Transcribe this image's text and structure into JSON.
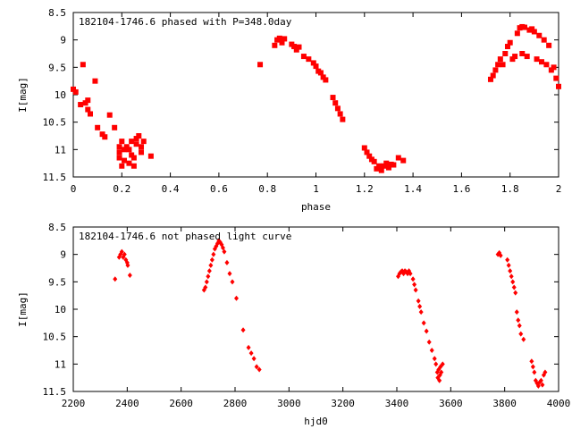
{
  "chart_data": [
    {
      "type": "scatter",
      "title": "182104-1746.6 phased with P=348.0day",
      "xlabel": "phase",
      "ylabel": "I[mag]",
      "xlim": [
        0,
        2
      ],
      "ylim": [
        8.5,
        11.5
      ],
      "y_inverted": true,
      "x_ticks": [
        "0",
        "0.2",
        "0.4",
        "0.6",
        "0.8",
        "1",
        "1.2",
        "1.4",
        "1.6",
        "1.8",
        "2"
      ],
      "y_ticks": [
        "8.5",
        "9",
        "9.5",
        "10",
        "10.5",
        "11",
        "11.5"
      ],
      "color": "#ff0000",
      "marker": "square",
      "grid": false,
      "points": [
        [
          0.0,
          9.9
        ],
        [
          0.01,
          9.95
        ],
        [
          0.03,
          10.18
        ],
        [
          0.04,
          9.45
        ],
        [
          0.05,
          10.15
        ],
        [
          0.06,
          10.27
        ],
        [
          0.06,
          10.1
        ],
        [
          0.07,
          10.35
        ],
        [
          0.09,
          9.75
        ],
        [
          0.1,
          10.6
        ],
        [
          0.12,
          10.72
        ],
        [
          0.13,
          10.77
        ],
        [
          0.15,
          10.37
        ],
        [
          0.17,
          10.6
        ],
        [
          0.19,
          10.95
        ],
        [
          0.19,
          11.05
        ],
        [
          0.19,
          11.15
        ],
        [
          0.2,
          11.3
        ],
        [
          0.2,
          10.85
        ],
        [
          0.21,
          11.2
        ],
        [
          0.21,
          11.0
        ],
        [
          0.22,
          10.95
        ],
        [
          0.23,
          11.25
        ],
        [
          0.23,
          11.0
        ],
        [
          0.24,
          11.1
        ],
        [
          0.24,
          10.85
        ],
        [
          0.25,
          11.3
        ],
        [
          0.25,
          11.15
        ],
        [
          0.26,
          10.8
        ],
        [
          0.26,
          10.9
        ],
        [
          0.27,
          10.75
        ],
        [
          0.28,
          10.95
        ],
        [
          0.28,
          11.05
        ],
        [
          0.29,
          10.85
        ],
        [
          0.32,
          11.12
        ],
        [
          0.77,
          9.45
        ],
        [
          0.83,
          9.1
        ],
        [
          0.84,
          9.0
        ],
        [
          0.85,
          8.97
        ],
        [
          0.86,
          9.05
        ],
        [
          0.87,
          8.98
        ],
        [
          0.9,
          9.08
        ],
        [
          0.91,
          9.12
        ],
        [
          0.92,
          9.18
        ],
        [
          0.93,
          9.13
        ],
        [
          0.95,
          9.3
        ],
        [
          0.97,
          9.35
        ],
        [
          0.99,
          9.42
        ],
        [
          1.0,
          9.48
        ],
        [
          1.01,
          9.57
        ],
        [
          1.02,
          9.6
        ],
        [
          1.03,
          9.68
        ],
        [
          1.04,
          9.73
        ],
        [
          1.07,
          10.05
        ],
        [
          1.08,
          10.15
        ],
        [
          1.09,
          10.25
        ],
        [
          1.1,
          10.35
        ],
        [
          1.11,
          10.45
        ],
        [
          1.2,
          10.97
        ],
        [
          1.21,
          11.05
        ],
        [
          1.22,
          11.12
        ],
        [
          1.23,
          11.18
        ],
        [
          1.24,
          11.22
        ],
        [
          1.25,
          11.35
        ],
        [
          1.26,
          11.3
        ],
        [
          1.27,
          11.38
        ],
        [
          1.28,
          11.3
        ],
        [
          1.29,
          11.25
        ],
        [
          1.3,
          11.33
        ],
        [
          1.31,
          11.27
        ],
        [
          1.32,
          11.28
        ],
        [
          1.34,
          11.15
        ],
        [
          1.36,
          11.2
        ],
        [
          1.72,
          9.72
        ],
        [
          1.73,
          9.65
        ],
        [
          1.74,
          9.55
        ],
        [
          1.75,
          9.45
        ],
        [
          1.76,
          9.35
        ],
        [
          1.77,
          9.45
        ],
        [
          1.78,
          9.25
        ],
        [
          1.79,
          9.12
        ],
        [
          1.8,
          9.05
        ],
        [
          1.81,
          9.35
        ],
        [
          1.82,
          9.3
        ],
        [
          1.83,
          8.88
        ],
        [
          1.84,
          8.78
        ],
        [
          1.85,
          8.76
        ],
        [
          1.85,
          9.25
        ],
        [
          1.86,
          8.77
        ],
        [
          1.87,
          9.3
        ],
        [
          1.88,
          8.82
        ],
        [
          1.89,
          8.8
        ],
        [
          1.9,
          8.85
        ],
        [
          1.91,
          9.35
        ],
        [
          1.92,
          8.92
        ],
        [
          1.93,
          9.4
        ],
        [
          1.94,
          9.0
        ],
        [
          1.95,
          9.45
        ],
        [
          1.96,
          9.1
        ],
        [
          1.97,
          9.55
        ],
        [
          1.98,
          9.5
        ],
        [
          1.99,
          9.7
        ],
        [
          2.0,
          9.85
        ]
      ]
    },
    {
      "type": "scatter",
      "title": "182104-1746.6 not phased light curve",
      "xlabel": "hjd0",
      "ylabel": "I[mag]",
      "xlim": [
        2200,
        4000
      ],
      "ylim": [
        8.5,
        11.5
      ],
      "y_inverted": true,
      "x_ticks": [
        "2200",
        "2400",
        "2600",
        "2800",
        "3000",
        "3200",
        "3400",
        "3600",
        "3800",
        "4000"
      ],
      "y_ticks": [
        "8.5",
        "9",
        "9.5",
        "10",
        "10.5",
        "11",
        "11.5"
      ],
      "color": "#ff0000",
      "marker": "diamond",
      "grid": false,
      "points": [
        [
          2355,
          9.45
        ],
        [
          2370,
          9.05
        ],
        [
          2375,
          9.0
        ],
        [
          2380,
          8.95
        ],
        [
          2385,
          9.05
        ],
        [
          2390,
          9.0
        ],
        [
          2395,
          9.1
        ],
        [
          2400,
          9.15
        ],
        [
          2402,
          9.2
        ],
        [
          2410,
          9.38
        ],
        [
          2685,
          9.65
        ],
        [
          2690,
          9.6
        ],
        [
          2695,
          9.5
        ],
        [
          2700,
          9.4
        ],
        [
          2705,
          9.3
        ],
        [
          2710,
          9.2
        ],
        [
          2715,
          9.1
        ],
        [
          2720,
          9.0
        ],
        [
          2725,
          8.9
        ],
        [
          2730,
          8.85
        ],
        [
          2735,
          8.8
        ],
        [
          2740,
          8.75
        ],
        [
          2745,
          8.78
        ],
        [
          2750,
          8.82
        ],
        [
          2755,
          8.88
        ],
        [
          2760,
          8.95
        ],
        [
          2770,
          9.15
        ],
        [
          2780,
          9.35
        ],
        [
          2790,
          9.5
        ],
        [
          2805,
          9.8
        ],
        [
          2830,
          10.38
        ],
        [
          2850,
          10.7
        ],
        [
          2860,
          10.8
        ],
        [
          2870,
          10.9
        ],
        [
          2880,
          11.05
        ],
        [
          2890,
          11.1
        ],
        [
          3405,
          9.4
        ],
        [
          3410,
          9.35
        ],
        [
          3415,
          9.32
        ],
        [
          3420,
          9.3
        ],
        [
          3425,
          9.35
        ],
        [
          3430,
          9.3
        ],
        [
          3435,
          9.32
        ],
        [
          3440,
          9.35
        ],
        [
          3445,
          9.3
        ],
        [
          3450,
          9.35
        ],
        [
          3460,
          9.45
        ],
        [
          3465,
          9.55
        ],
        [
          3470,
          9.65
        ],
        [
          3480,
          9.85
        ],
        [
          3485,
          9.95
        ],
        [
          3490,
          10.05
        ],
        [
          3500,
          10.25
        ],
        [
          3510,
          10.4
        ],
        [
          3520,
          10.6
        ],
        [
          3530,
          10.75
        ],
        [
          3540,
          10.9
        ],
        [
          3545,
          11.0
        ],
        [
          3550,
          11.15
        ],
        [
          3552,
          11.25
        ],
        [
          3555,
          11.1
        ],
        [
          3558,
          11.3
        ],
        [
          3560,
          11.2
        ],
        [
          3562,
          11.05
        ],
        [
          3565,
          11.15
        ],
        [
          3570,
          11.0
        ],
        [
          3775,
          9.0
        ],
        [
          3780,
          8.97
        ],
        [
          3785,
          9.02
        ],
        [
          3810,
          9.1
        ],
        [
          3815,
          9.2
        ],
        [
          3820,
          9.3
        ],
        [
          3825,
          9.4
        ],
        [
          3830,
          9.5
        ],
        [
          3835,
          9.6
        ],
        [
          3840,
          9.7
        ],
        [
          3845,
          10.05
        ],
        [
          3850,
          10.2
        ],
        [
          3855,
          10.3
        ],
        [
          3860,
          10.45
        ],
        [
          3870,
          10.55
        ],
        [
          3900,
          10.95
        ],
        [
          3905,
          11.05
        ],
        [
          3910,
          11.15
        ],
        [
          3915,
          11.3
        ],
        [
          3920,
          11.35
        ],
        [
          3925,
          11.4
        ],
        [
          3930,
          11.33
        ],
        [
          3935,
          11.3
        ],
        [
          3940,
          11.38
        ],
        [
          3945,
          11.2
        ],
        [
          3950,
          11.15
        ]
      ]
    }
  ]
}
